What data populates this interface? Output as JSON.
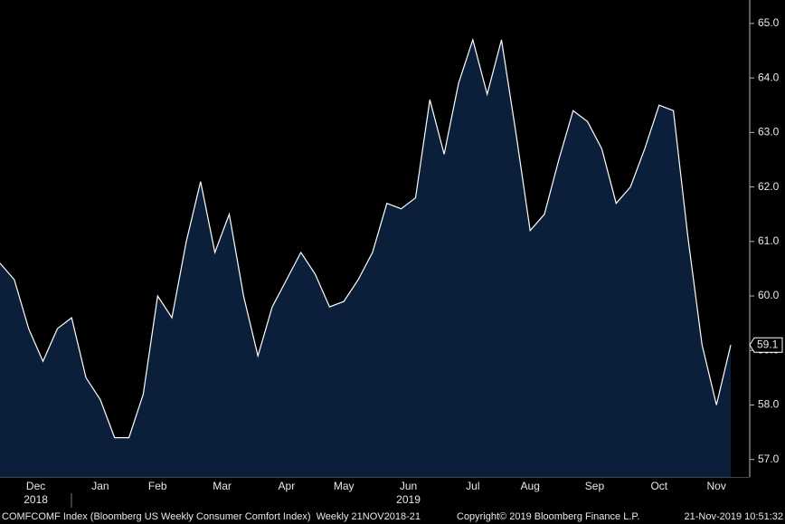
{
  "chart_data": {
    "type": "area",
    "values": [
      60.6,
      60.3,
      59.4,
      58.8,
      59.4,
      59.6,
      58.5,
      58.1,
      57.4,
      57.4,
      58.2,
      60.0,
      59.6,
      61.0,
      62.1,
      60.8,
      61.5,
      60.0,
      58.9,
      59.8,
      60.3,
      60.8,
      60.4,
      59.8,
      59.9,
      60.3,
      60.8,
      61.7,
      61.6,
      61.8,
      63.6,
      62.6,
      63.9,
      64.7,
      63.7,
      64.7,
      63.0,
      61.2,
      61.5,
      62.5,
      63.4,
      63.2,
      62.7,
      61.7,
      62.0,
      62.7,
      63.5,
      63.4,
      61.1,
      59.1,
      58.0,
      59.1
    ],
    "color": "#0b1f3b",
    "line_color": "#ffffff",
    "xlim": [
      0,
      51
    ],
    "xticks": [
      {
        "value": 2.5,
        "label": "Dec"
      },
      {
        "value": 7,
        "label": "Jan"
      },
      {
        "value": 11,
        "label": "Feb"
      },
      {
        "value": 15.5,
        "label": "Mar"
      },
      {
        "value": 20,
        "label": "Apr"
      },
      {
        "value": 24,
        "label": "May"
      },
      {
        "value": 28.5,
        "label": "Jun"
      },
      {
        "value": 33,
        "label": "Jul"
      },
      {
        "value": 37,
        "label": "Aug"
      },
      {
        "value": 41.5,
        "label": "Sep"
      },
      {
        "value": 46,
        "label": "Oct"
      },
      {
        "value": 50,
        "label": "Nov"
      }
    ],
    "years": [
      {
        "value": 2.5,
        "label": "2018"
      },
      {
        "value": 28.5,
        "label": "2019"
      }
    ],
    "ylim": [
      56.68,
      65.43
    ],
    "yticks": [
      {
        "value": 57,
        "label": "57.0"
      },
      {
        "value": 58,
        "label": "58.0"
      },
      {
        "value": 59,
        "label": "59.0"
      },
      {
        "value": 60,
        "label": "60.0"
      },
      {
        "value": 61,
        "label": "61.0"
      },
      {
        "value": 62,
        "label": "62.0"
      },
      {
        "value": 63,
        "label": "63.0"
      },
      {
        "value": 64,
        "label": "64.0"
      },
      {
        "value": 65,
        "label": "65.0"
      }
    ],
    "footer_left": "COMFCOMF Index (Bloomberg US Weekly Consumer Comfort Index)  Weekly 21NOV2018-21",
    "footer_center": "Copyright© 2019 Bloomberg Finance L.P.",
    "footer_right": "21-Nov-2019 10:51:32"
  }
}
